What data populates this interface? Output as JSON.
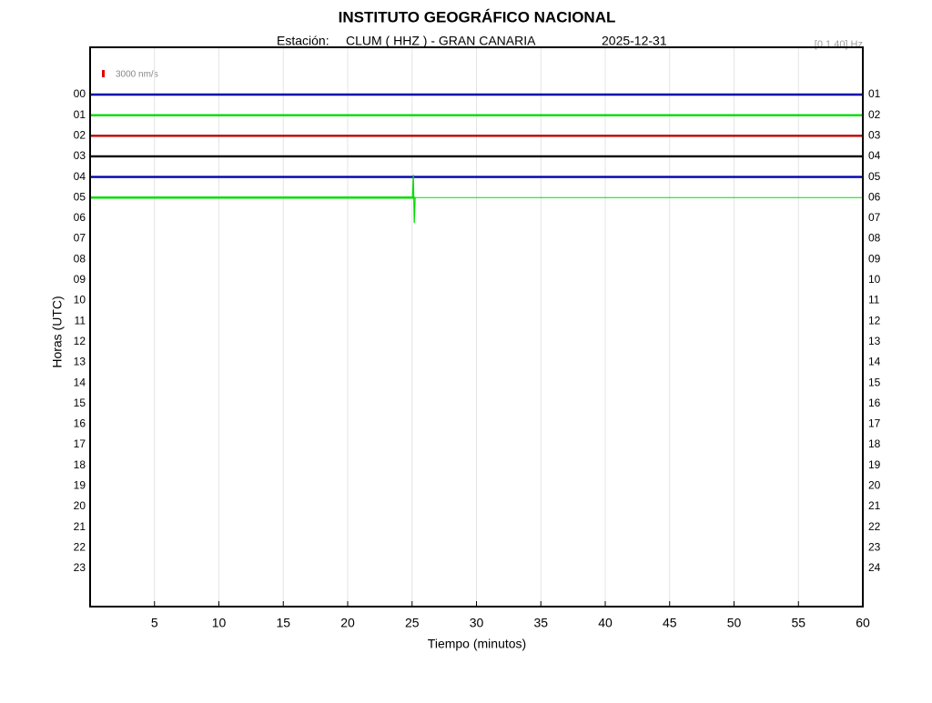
{
  "chart_data": {
    "type": "helicorder",
    "title": "INSTITUTO GEOGRÁFICO NACIONAL",
    "station_label": "Estación:",
    "station": "CLUM ( HHZ ) - GRAN CANARIA",
    "date": "2025-12-31",
    "filter": "[0.1 40] Hz",
    "scale_label": "3000 nm/s",
    "scale_color": "#dd0000",
    "ylabel": "Horas (UTC)",
    "xlabel": "Tiempo (minutos)",
    "categories": [
      "00",
      "01",
      "02",
      "03",
      "04",
      "05",
      "06",
      "07",
      "08",
      "09",
      "10",
      "11",
      "12",
      "13",
      "14",
      "15",
      "16",
      "17",
      "18",
      "19",
      "20",
      "21",
      "22",
      "23"
    ],
    "right_labels": [
      "01",
      "02",
      "03",
      "04",
      "05",
      "06",
      "07",
      "08",
      "09",
      "10",
      "11",
      "12",
      "13",
      "14",
      "15",
      "16",
      "17",
      "18",
      "19",
      "20",
      "21",
      "22",
      "23",
      "24"
    ],
    "xlim": [
      0,
      60
    ],
    "xticks": [
      5,
      10,
      15,
      20,
      25,
      30,
      35,
      40,
      45,
      50,
      55,
      60
    ],
    "grid": true,
    "traces": [
      {
        "color": "#0000b0",
        "end": 60
      },
      {
        "color": "#00dd00",
        "end": 60
      },
      {
        "color": "#c00000",
        "end": 60
      },
      {
        "color": "#000000",
        "end": 60
      },
      {
        "color": "#0000b0",
        "end": 60
      },
      {
        "color": "#00dd00",
        "end": 25.2
      }
    ],
    "event": {
      "row": 5,
      "x": 25.1
    }
  }
}
